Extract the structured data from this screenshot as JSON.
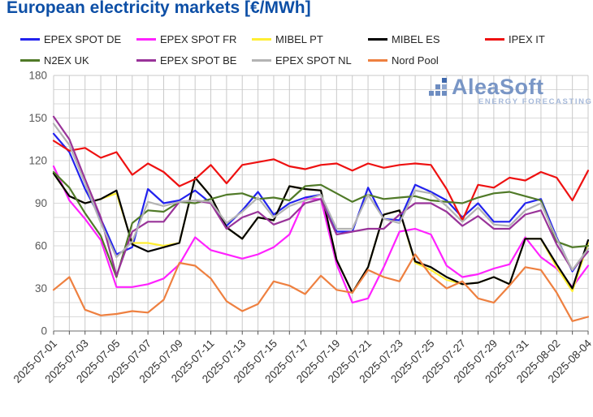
{
  "title": "European electricity markets [€/MWh]",
  "title_color": "#0d4fa6",
  "logo": {
    "text": "AleaSoft",
    "subtext": "ENERGY FORECASTING"
  },
  "legend": {
    "items": [
      {
        "label": "EPEX SPOT DE",
        "color": "#2222ee"
      },
      {
        "label": "EPEX SPOT FR",
        "color": "#ff22ff"
      },
      {
        "label": "MIBEL PT",
        "color": "#ffee33"
      },
      {
        "label": "MIBEL ES",
        "color": "#000000"
      },
      {
        "label": "IPEX IT",
        "color": "#ee1111"
      },
      {
        "label": "N2EX UK",
        "color": "#507a28"
      },
      {
        "label": "EPEX SPOT BE",
        "color": "#993399"
      },
      {
        "label": "EPEX SPOT NL",
        "color": "#b3b3b3"
      },
      {
        "label": "Nord Pool",
        "color": "#ee8040"
      }
    ]
  },
  "chart_data": {
    "type": "line",
    "title": "European electricity markets [€/MWh]",
    "xlabel": "",
    "ylabel": "",
    "ylim": [
      0,
      180
    ],
    "y_ticks": [
      0,
      30,
      60,
      90,
      120,
      150,
      180
    ],
    "y_minor_grid_step": 10,
    "grid": true,
    "legend_position": "top",
    "x_tick_label_step": 2,
    "x": [
      "2025-07-01",
      "2025-07-02",
      "2025-07-03",
      "2025-07-04",
      "2025-07-05",
      "2025-07-06",
      "2025-07-07",
      "2025-07-08",
      "2025-07-09",
      "2025-07-10",
      "2025-07-11",
      "2025-07-12",
      "2025-07-13",
      "2025-07-14",
      "2025-07-15",
      "2025-07-16",
      "2025-07-17",
      "2025-07-18",
      "2025-07-19",
      "2025-07-20",
      "2025-07-21",
      "2025-07-22",
      "2025-07-23",
      "2025-07-24",
      "2025-07-25",
      "2025-07-26",
      "2025-07-27",
      "2025-07-28",
      "2025-07-29",
      "2025-07-30",
      "2025-07-31",
      "2025-08-01",
      "2025-08-02",
      "2025-08-03",
      "2025-08-04"
    ],
    "series": [
      {
        "name": "EPEX SPOT DE",
        "color": "#2222ee",
        "values": [
          139,
          126,
          100,
          79,
          54,
          59,
          100,
          90,
          92,
          99,
          90,
          74,
          85,
          98,
          82,
          90,
          94,
          96,
          70,
          70,
          101,
          79,
          78,
          103,
          98,
          92,
          80,
          90,
          77,
          77,
          90,
          93,
          66,
          42,
          58
        ]
      },
      {
        "name": "EPEX SPOT FR",
        "color": "#ff22ff",
        "values": [
          116,
          92,
          79,
          64,
          31,
          31,
          33,
          37,
          47,
          66,
          57,
          54,
          51,
          54,
          59,
          68,
          93,
          93,
          47,
          20,
          23,
          45,
          70,
          72,
          68,
          46,
          38,
          40,
          44,
          47,
          66,
          52,
          44,
          31,
          46
        ]
      },
      {
        "name": "MIBEL PT",
        "color": "#ffee33",
        "values": [
          111,
          95,
          90,
          93,
          97,
          62,
          62,
          60,
          62,
          108,
          95,
          73,
          65,
          80,
          78,
          102,
          100,
          99,
          50,
          27,
          45,
          82,
          85,
          48,
          43,
          36,
          33,
          34,
          38,
          33,
          65,
          65,
          45,
          28,
          62
        ]
      },
      {
        "name": "MIBEL ES",
        "color": "#000000",
        "values": [
          111,
          95,
          90,
          93,
          99,
          61,
          56,
          59,
          62,
          108,
          95,
          73,
          65,
          80,
          78,
          102,
          100,
          99,
          50,
          27,
          45,
          82,
          85,
          49,
          45,
          38,
          33,
          34,
          38,
          33,
          65,
          65,
          47,
          30,
          64
        ]
      },
      {
        "name": "IPEX IT",
        "color": "#ee1111",
        "values": [
          134,
          127,
          129,
          122,
          126,
          110,
          118,
          112,
          102,
          107,
          117,
          104,
          117,
          119,
          121,
          116,
          114,
          117,
          118,
          113,
          118,
          115,
          117,
          118,
          117,
          100,
          78,
          103,
          101,
          108,
          106,
          112,
          108,
          92,
          113
        ]
      },
      {
        "name": "N2EX UK",
        "color": "#507a28",
        "values": [
          112,
          101,
          83,
          67,
          38,
          76,
          85,
          84,
          91,
          90,
          93,
          96,
          97,
          93,
          94,
          92,
          102,
          103,
          97,
          91,
          96,
          93,
          94,
          95,
          92,
          91,
          90,
          94,
          97,
          98,
          95,
          92,
          63,
          59,
          60
        ]
      },
      {
        "name": "EPEX SPOT BE",
        "color": "#993399",
        "values": [
          151,
          135,
          107,
          80,
          39,
          70,
          77,
          77,
          91,
          92,
          90,
          72,
          80,
          84,
          75,
          79,
          90,
          93,
          68,
          70,
          72,
          72,
          82,
          90,
          90,
          84,
          74,
          81,
          72,
          72,
          82,
          85,
          61,
          43,
          56
        ]
      },
      {
        "name": "EPEX SPOT NL",
        "color": "#b3b3b3",
        "values": [
          146,
          131,
          104,
          76,
          52,
          63,
          91,
          88,
          91,
          92,
          91,
          76,
          84,
          94,
          80,
          88,
          92,
          96,
          72,
          72,
          96,
          79,
          76,
          99,
          97,
          88,
          77,
          87,
          75,
          74,
          85,
          90,
          65,
          43,
          58
        ]
      },
      {
        "name": "Nord Pool",
        "color": "#ee8040",
        "values": [
          29,
          38,
          15,
          11,
          12,
          14,
          13,
          22,
          48,
          46,
          37,
          21,
          14,
          19,
          35,
          32,
          26,
          39,
          29,
          27,
          43,
          38,
          35,
          54,
          39,
          30,
          35,
          23,
          20,
          32,
          45,
          43,
          27,
          7,
          10
        ]
      }
    ]
  }
}
